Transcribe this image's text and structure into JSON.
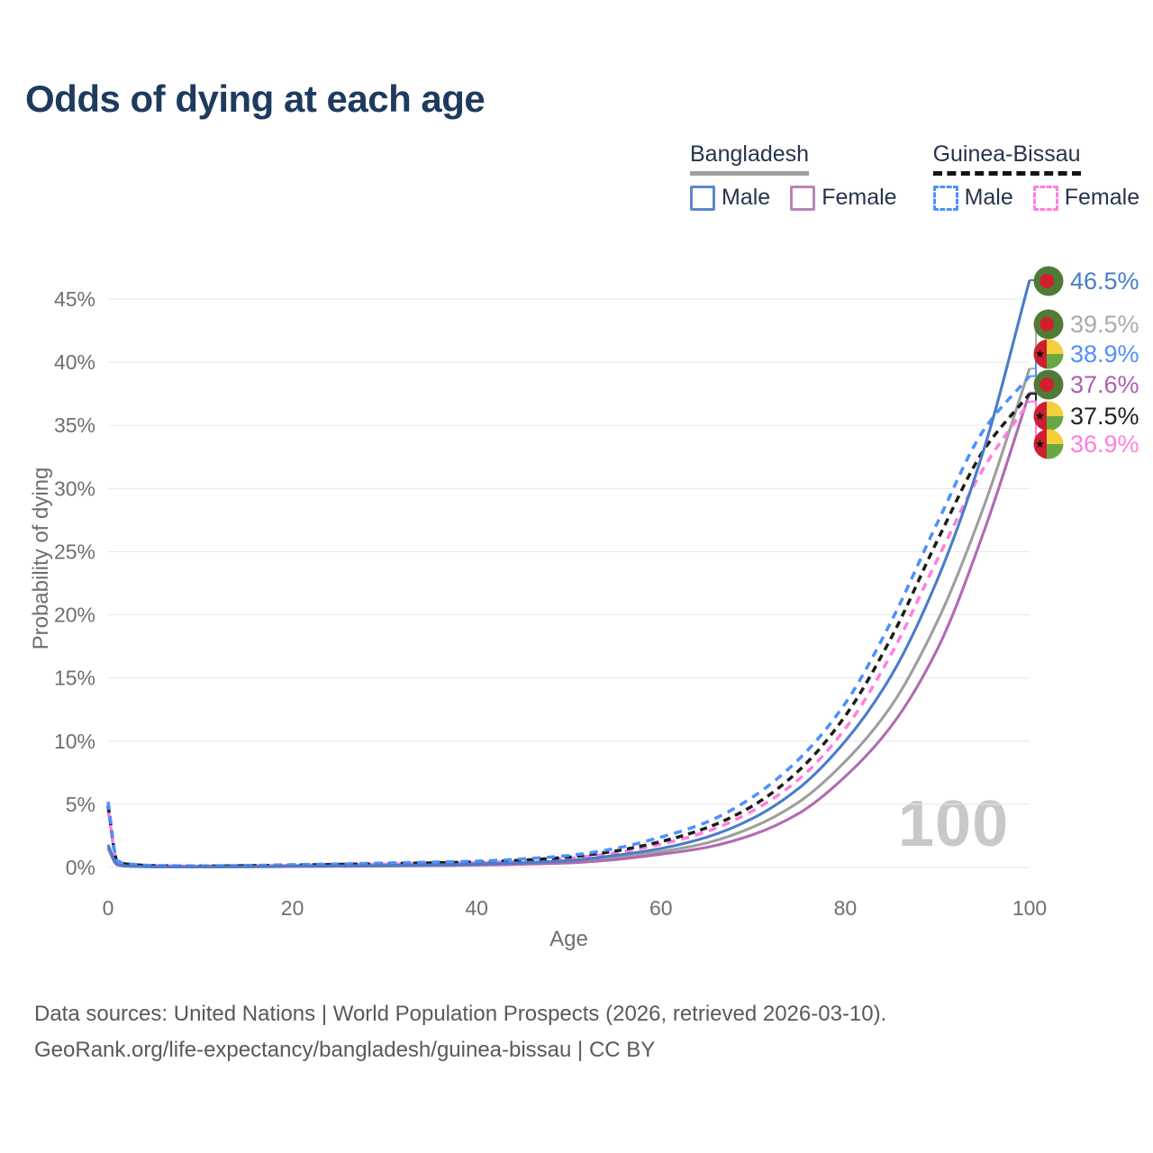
{
  "title": "Odds of dying at each age",
  "watermark_age": "100",
  "legend": {
    "groups": [
      {
        "label": "Bangladesh",
        "line_style": "solid gray",
        "items": [
          {
            "label": "Male"
          },
          {
            "label": "Female"
          }
        ]
      },
      {
        "label": "Guinea-Bissau",
        "line_style": "dashed black",
        "items": [
          {
            "label": "Male"
          },
          {
            "label": "Female"
          }
        ]
      }
    ]
  },
  "end_labels": [
    {
      "value": "46.5%",
      "country": "Bangladesh",
      "series": "Male",
      "flag": "bd",
      "color": "#4a7cc8",
      "series_index": 0
    },
    {
      "value": "39.5%",
      "country": "Bangladesh",
      "series": "Both sexes",
      "flag": "bd",
      "color": "#ababab",
      "series_index": 1
    },
    {
      "value": "38.9%",
      "country": "Guinea-Bissau",
      "series": "Male",
      "flag": "gw",
      "color": "#4d90fe",
      "series_index": 3
    },
    {
      "value": "37.6%",
      "country": "Bangladesh",
      "series": "Female",
      "flag": "bd",
      "color": "#ad5fad",
      "series_index": 2
    },
    {
      "value": "37.5%",
      "country": "Guinea-Bissau",
      "series": "Both sexes",
      "flag": "gw",
      "color": "#222222",
      "series_index": 4
    },
    {
      "value": "36.9%",
      "country": "Guinea-Bissau",
      "series": "Female",
      "flag": "gw",
      "color": "#ff7ee0",
      "series_index": 5
    }
  ],
  "footer": {
    "line1": "Data sources: United Nations | World Population Prospects (2026, retrieved 2026-03-10).",
    "line2": "GeoRank.org/life-expectancy/bangladesh/guinea-bissau | CC BY"
  },
  "chart_data": {
    "type": "line",
    "xlabel": "Age",
    "ylabel": "Probability of dying",
    "x_ticks": [
      0,
      20,
      40,
      60,
      80,
      100
    ],
    "y_ticks_percent": [
      0,
      5,
      10,
      15,
      20,
      25,
      30,
      35,
      40,
      45
    ],
    "xlim": [
      0,
      100
    ],
    "ylim_percent": [
      0,
      47
    ],
    "grid": true,
    "legend_position": "top-right",
    "ages": [
      0,
      1,
      2,
      5,
      10,
      15,
      20,
      25,
      30,
      35,
      40,
      45,
      50,
      55,
      60,
      65,
      70,
      75,
      80,
      85,
      90,
      95,
      100
    ],
    "series": [
      {
        "name": "Bangladesh Male",
        "color": "#4a7cc8",
        "dash": "solid",
        "end_value_percent": 46.5,
        "values": [
          1.8,
          0.25,
          0.12,
          0.06,
          0.05,
          0.07,
          0.1,
          0.13,
          0.16,
          0.2,
          0.27,
          0.38,
          0.55,
          0.95,
          1.5,
          2.4,
          3.9,
          6.3,
          10.0,
          15.2,
          22.8,
          33.0,
          46.5
        ]
      },
      {
        "name": "Bangladesh Both sexes",
        "color": "#9e9e9e",
        "dash": "solid",
        "end_value_percent": 39.5,
        "values": [
          1.65,
          0.22,
          0.11,
          0.055,
          0.045,
          0.06,
          0.08,
          0.11,
          0.13,
          0.17,
          0.22,
          0.31,
          0.45,
          0.78,
          1.25,
          1.95,
          3.2,
          5.2,
          8.4,
          12.8,
          19.5,
          28.5,
          39.5
        ]
      },
      {
        "name": "Bangladesh Female",
        "color": "#b06ab3",
        "dash": "solid",
        "end_value_percent": 37.6,
        "values": [
          1.5,
          0.2,
          0.1,
          0.05,
          0.04,
          0.05,
          0.07,
          0.09,
          0.11,
          0.14,
          0.18,
          0.25,
          0.36,
          0.62,
          1.05,
          1.6,
          2.6,
          4.3,
          7.2,
          11.2,
          17.3,
          26.5,
          37.6
        ]
      },
      {
        "name": "Guinea-Bissau Male",
        "color": "#4d90fe",
        "dash": "dashed",
        "end_value_percent": 38.9,
        "values": [
          5.2,
          0.55,
          0.3,
          0.16,
          0.13,
          0.16,
          0.22,
          0.28,
          0.35,
          0.42,
          0.5,
          0.68,
          0.95,
          1.5,
          2.4,
          3.6,
          5.6,
          8.6,
          13.0,
          19.5,
          27.3,
          34.6,
          38.9
        ]
      },
      {
        "name": "Guinea-Bissau Both sexes",
        "color": "#1c1c1c",
        "dash": "dashed",
        "end_value_percent": 37.5,
        "values": [
          4.9,
          0.5,
          0.27,
          0.14,
          0.11,
          0.14,
          0.19,
          0.24,
          0.3,
          0.36,
          0.43,
          0.58,
          0.82,
          1.3,
          2.05,
          3.15,
          4.9,
          7.7,
          12.0,
          18.2,
          25.9,
          33.0,
          37.5
        ]
      },
      {
        "name": "Guinea-Bissau Female",
        "color": "#ff7ee0",
        "dash": "dashed",
        "end_value_percent": 36.9,
        "values": [
          4.6,
          0.45,
          0.25,
          0.13,
          0.1,
          0.12,
          0.16,
          0.21,
          0.26,
          0.31,
          0.38,
          0.5,
          0.72,
          1.15,
          1.85,
          2.85,
          4.5,
          7.0,
          11.0,
          16.9,
          24.4,
          31.6,
          36.9
        ]
      }
    ]
  }
}
